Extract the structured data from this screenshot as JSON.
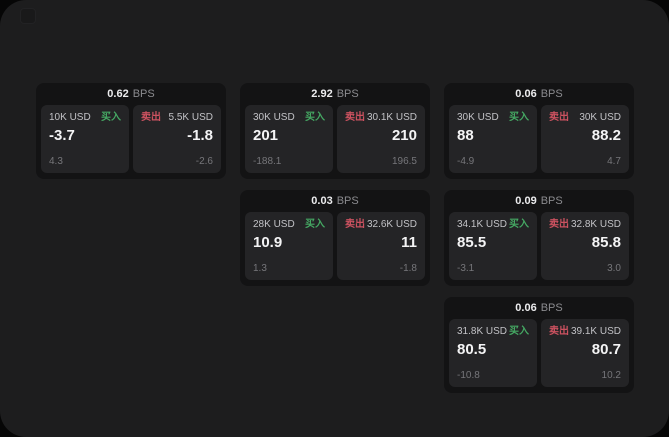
{
  "labels": {
    "bps_unit": "BPS",
    "buy": "买入",
    "sell": "卖出"
  },
  "colors": {
    "outer_background": "#060606",
    "screen_background": "#1d1d1e",
    "card_background": "#131314",
    "tile_background": "#242426",
    "buy_green": "#45a863",
    "sell_red": "#cc5260",
    "price_text": "#f4f4f5",
    "muted_text": "#76767a"
  },
  "cards": [
    {
      "bps": "0.62",
      "buy": {
        "amount": "10K USD",
        "price": "-3.7",
        "delta": "4.3"
      },
      "sell": {
        "amount": "5.5K USD",
        "price": "-1.8",
        "delta": "-2.6"
      }
    },
    {
      "bps": "2.92",
      "buy": {
        "amount": "30K USD",
        "price": "201",
        "delta": "-188.1"
      },
      "sell": {
        "amount": "30.1K USD",
        "price": "210",
        "delta": "196.5"
      }
    },
    {
      "bps": "0.06",
      "buy": {
        "amount": "30K USD",
        "price": "88",
        "delta": "-4.9"
      },
      "sell": {
        "amount": "30K USD",
        "price": "88.2",
        "delta": "4.7"
      }
    },
    {
      "bps": "0.03",
      "buy": {
        "amount": "28K USD",
        "price": "10.9",
        "delta": "1.3"
      },
      "sell": {
        "amount": "32.6K USD",
        "price": "11",
        "delta": "-1.8"
      }
    },
    {
      "bps": "0.09",
      "buy": {
        "amount": "34.1K USD",
        "price": "85.5",
        "delta": "-3.1"
      },
      "sell": {
        "amount": "32.8K USD",
        "price": "85.8",
        "delta": "3.0"
      }
    },
    {
      "bps": "0.06",
      "buy": {
        "amount": "31.8K USD",
        "price": "80.5",
        "delta": "-10.8"
      },
      "sell": {
        "amount": "39.1K USD",
        "price": "80.7",
        "delta": "10.2"
      }
    }
  ]
}
